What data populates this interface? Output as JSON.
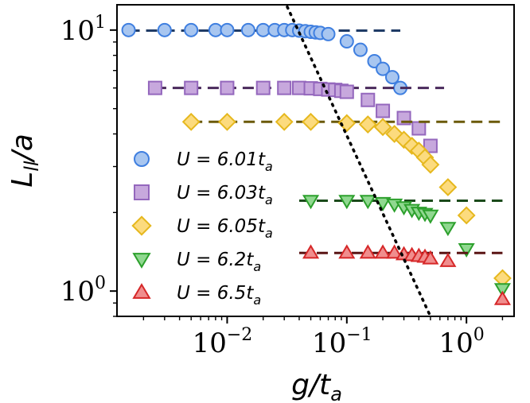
{
  "chart_data": {
    "type": "scatter",
    "xscale": "log",
    "yscale": "log",
    "xlim": [
      0.0012,
      2.5
    ],
    "ylim": [
      0.8,
      12.5
    ],
    "xlabel": {
      "main": "g/t",
      "sub": "a"
    },
    "ylabel": {
      "main": "L",
      "sub": "ll",
      "tail": "/a"
    },
    "x_ticks": [
      {
        "value": 0.01,
        "base": "10",
        "exp": "−2"
      },
      {
        "value": 0.1,
        "base": "10",
        "exp": "−1"
      },
      {
        "value": 1,
        "base": "10",
        "exp": "0"
      }
    ],
    "y_ticks": [
      {
        "value": 1,
        "base": "10",
        "exp": "0"
      },
      {
        "value": 10,
        "base": "10",
        "exp": "1"
      }
    ],
    "legend_position": "left-center",
    "series": [
      {
        "name": "U = 6.01t_a",
        "label_pre": "U = 6.01",
        "label_sub": "a",
        "marker": "circle",
        "fill": "#a8c6f0",
        "edge": "#3f7fe0",
        "plateau": 9.95,
        "plateau_color": "#1f3b66",
        "plateau_range": [
          0.0015,
          0.28
        ],
        "x": [
          0.0015,
          0.003,
          0.005,
          0.008,
          0.01,
          0.015,
          0.02,
          0.025,
          0.03,
          0.035,
          0.04,
          0.045,
          0.05,
          0.055,
          0.06,
          0.07,
          0.1,
          0.13,
          0.17,
          0.2,
          0.24,
          0.28
        ],
        "y": [
          10.0,
          10.0,
          10.0,
          10.0,
          10.0,
          10.0,
          10.0,
          10.0,
          10.0,
          10.0,
          9.95,
          9.9,
          9.85,
          9.8,
          9.75,
          9.65,
          9.05,
          8.4,
          7.6,
          7.1,
          6.6,
          6.0
        ]
      },
      {
        "name": "U = 6.03t_a",
        "label_pre": "U = 6.03",
        "label_sub": "a",
        "marker": "square",
        "fill": "#c7a8dd",
        "edge": "#9467bd",
        "plateau": 6.0,
        "plateau_color": "#4a2a5c",
        "plateau_range": [
          0.0025,
          0.65
        ],
        "x": [
          0.0025,
          0.005,
          0.01,
          0.02,
          0.03,
          0.04,
          0.05,
          0.06,
          0.07,
          0.08,
          0.09,
          0.1,
          0.15,
          0.2,
          0.3,
          0.4,
          0.5
        ],
        "y": [
          6.0,
          6.0,
          6.0,
          6.0,
          6.0,
          6.0,
          5.98,
          5.95,
          5.92,
          5.9,
          5.85,
          5.8,
          5.4,
          4.9,
          4.6,
          4.2,
          3.6
        ]
      },
      {
        "name": "U = 6.05t_a",
        "label_pre": "U = 6.05",
        "label_sub": "a",
        "marker": "diamond",
        "fill": "#fcdb7e",
        "edge": "#e6b81e",
        "plateau": 4.45,
        "plateau_color": "#6b5a0a",
        "plateau_range": [
          0.005,
          2.0
        ],
        "x": [
          0.005,
          0.01,
          0.03,
          0.05,
          0.1,
          0.15,
          0.2,
          0.25,
          0.3,
          0.35,
          0.4,
          0.45,
          0.5,
          0.7,
          1.0,
          2.0
        ],
        "y": [
          4.45,
          4.45,
          4.45,
          4.45,
          4.4,
          4.35,
          4.25,
          4.0,
          3.8,
          3.6,
          3.45,
          3.25,
          3.05,
          2.5,
          1.95,
          1.12
        ]
      },
      {
        "name": "U = 6.2t_a",
        "label_pre": "U = 6.2",
        "label_sub": "a",
        "marker": "triangle-down",
        "fill": "#90d890",
        "edge": "#2ca02c",
        "plateau": 2.22,
        "plateau_color": "#1a4a1a",
        "plateau_range": [
          0.04,
          2.0
        ],
        "x": [
          0.05,
          0.1,
          0.15,
          0.2,
          0.25,
          0.3,
          0.35,
          0.4,
          0.45,
          0.5,
          0.7,
          1.0,
          2.0
        ],
        "y": [
          2.22,
          2.22,
          2.22,
          2.18,
          2.15,
          2.1,
          2.05,
          2.0,
          1.98,
          1.95,
          1.75,
          1.45,
          1.02
        ]
      },
      {
        "name": "U = 6.5t_a",
        "label_pre": "U = 6.5",
        "label_sub": "a",
        "marker": "triangle-up",
        "fill": "#f08d8d",
        "edge": "#d62728",
        "plateau": 1.4,
        "plateau_color": "#5a1414",
        "plateau_range": [
          0.04,
          2.0
        ],
        "x": [
          0.05,
          0.1,
          0.15,
          0.2,
          0.25,
          0.3,
          0.35,
          0.4,
          0.45,
          0.5,
          0.7,
          2.0
        ],
        "y": [
          1.4,
          1.4,
          1.4,
          1.4,
          1.4,
          1.38,
          1.37,
          1.36,
          1.35,
          1.33,
          1.3,
          0.93
        ]
      }
    ],
    "guide_line": {
      "style": "dotted",
      "color": "#000000",
      "x": [
        0.03,
        0.5
      ],
      "y": [
        13.0,
        0.8
      ]
    }
  }
}
